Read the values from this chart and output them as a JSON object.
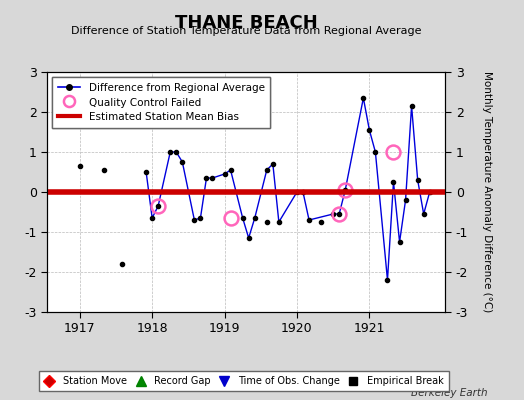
{
  "title": "THANE BEACH",
  "subtitle": "Difference of Station Temperature Data from Regional Average",
  "ylabel_right": "Monthly Temperature Anomaly Difference (°C)",
  "bias_line": 0.0,
  "bias_color": "#cc0000",
  "xlim": [
    1916.55,
    1922.05
  ],
  "ylim": [
    -3.0,
    3.0
  ],
  "yticks": [
    -3,
    -2,
    -1,
    0,
    1,
    2,
    3
  ],
  "xticks": [
    1917,
    1918,
    1919,
    1920,
    1921
  ],
  "background_color": "#d8d8d8",
  "plot_bg_color": "#ffffff",
  "grid_color": "#bbbbbb",
  "watermark": "Berkeley Earth",
  "line_color": "#0000dd",
  "dot_color": "#000000",
  "qc_color": "#ff66bb",
  "connected_x": [
    1917.917,
    1918.0,
    1918.083,
    1918.25,
    1918.333,
    1918.417,
    1918.583,
    1918.667,
    1918.75,
    1918.833,
    1919.0,
    1919.083,
    1919.25,
    1919.333,
    1919.417,
    1919.583,
    1919.667,
    1919.75,
    1920.0,
    1920.083,
    1920.167,
    1920.5,
    1920.583,
    1920.667,
    1920.917,
    1921.0,
    1921.083,
    1921.25,
    1921.333,
    1921.417,
    1921.5,
    1921.583,
    1921.667,
    1921.75,
    1921.833
  ],
  "connected_y": [
    0.5,
    -0.65,
    -0.35,
    1.0,
    1.0,
    0.75,
    -0.7,
    -0.65,
    0.35,
    0.35,
    0.45,
    0.55,
    -0.65,
    -1.15,
    -0.65,
    0.55,
    0.7,
    -0.75,
    0.0,
    0.0,
    -0.7,
    -0.55,
    -0.55,
    0.05,
    2.35,
    1.55,
    1.0,
    -2.2,
    0.25,
    -1.25,
    -0.2,
    2.15,
    0.3,
    -0.55,
    0.0
  ],
  "isolated_x": [
    1917.0,
    1917.333,
    1917.583,
    1919.583,
    1920.333
  ],
  "isolated_y": [
    0.65,
    0.55,
    -1.8,
    -0.75,
    -0.75
  ],
  "qc_x": [
    1918.083,
    1919.083,
    1920.583,
    1920.667,
    1921.333
  ],
  "qc_y": [
    -0.35,
    -0.65,
    -0.55,
    0.05,
    1.0
  ]
}
